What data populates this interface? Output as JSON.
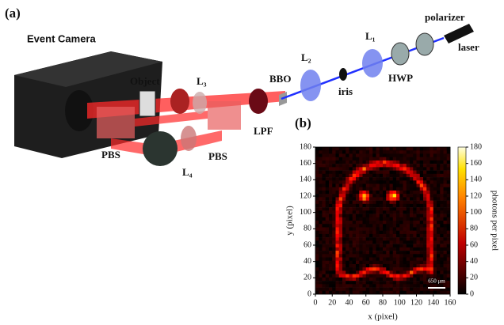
{
  "panel_a": {
    "label": "(a)",
    "camera": "Event Camera",
    "object": "Object",
    "l3": "L₃",
    "bbo": "BBO",
    "l2": "L₂",
    "l1": "L₁",
    "polarizer": "polarizer",
    "laser": "laser",
    "iris": "iris",
    "hwp": "HWP",
    "lpf": "LPF",
    "pbs_left": "PBS",
    "pbs_right": "PBS",
    "l4": "L₄"
  },
  "chart_data": {
    "type": "heatmap",
    "label": "(b)",
    "xlabel": "x (pixel)",
    "ylabel": "y (pixel)",
    "xlim": [
      0,
      160
    ],
    "xticks": [
      0,
      20,
      40,
      60,
      80,
      100,
      120,
      140,
      160
    ],
    "ylim": [
      0,
      180
    ],
    "yticks": [
      0,
      20,
      40,
      60,
      80,
      100,
      120,
      140,
      160,
      180
    ],
    "colorbar_label": "photons per pixel",
    "clim": [
      0,
      180
    ],
    "cticks": [
      0,
      20,
      40,
      60,
      80,
      100,
      120,
      140,
      160,
      180
    ],
    "scale_bar": "650 μm"
  }
}
